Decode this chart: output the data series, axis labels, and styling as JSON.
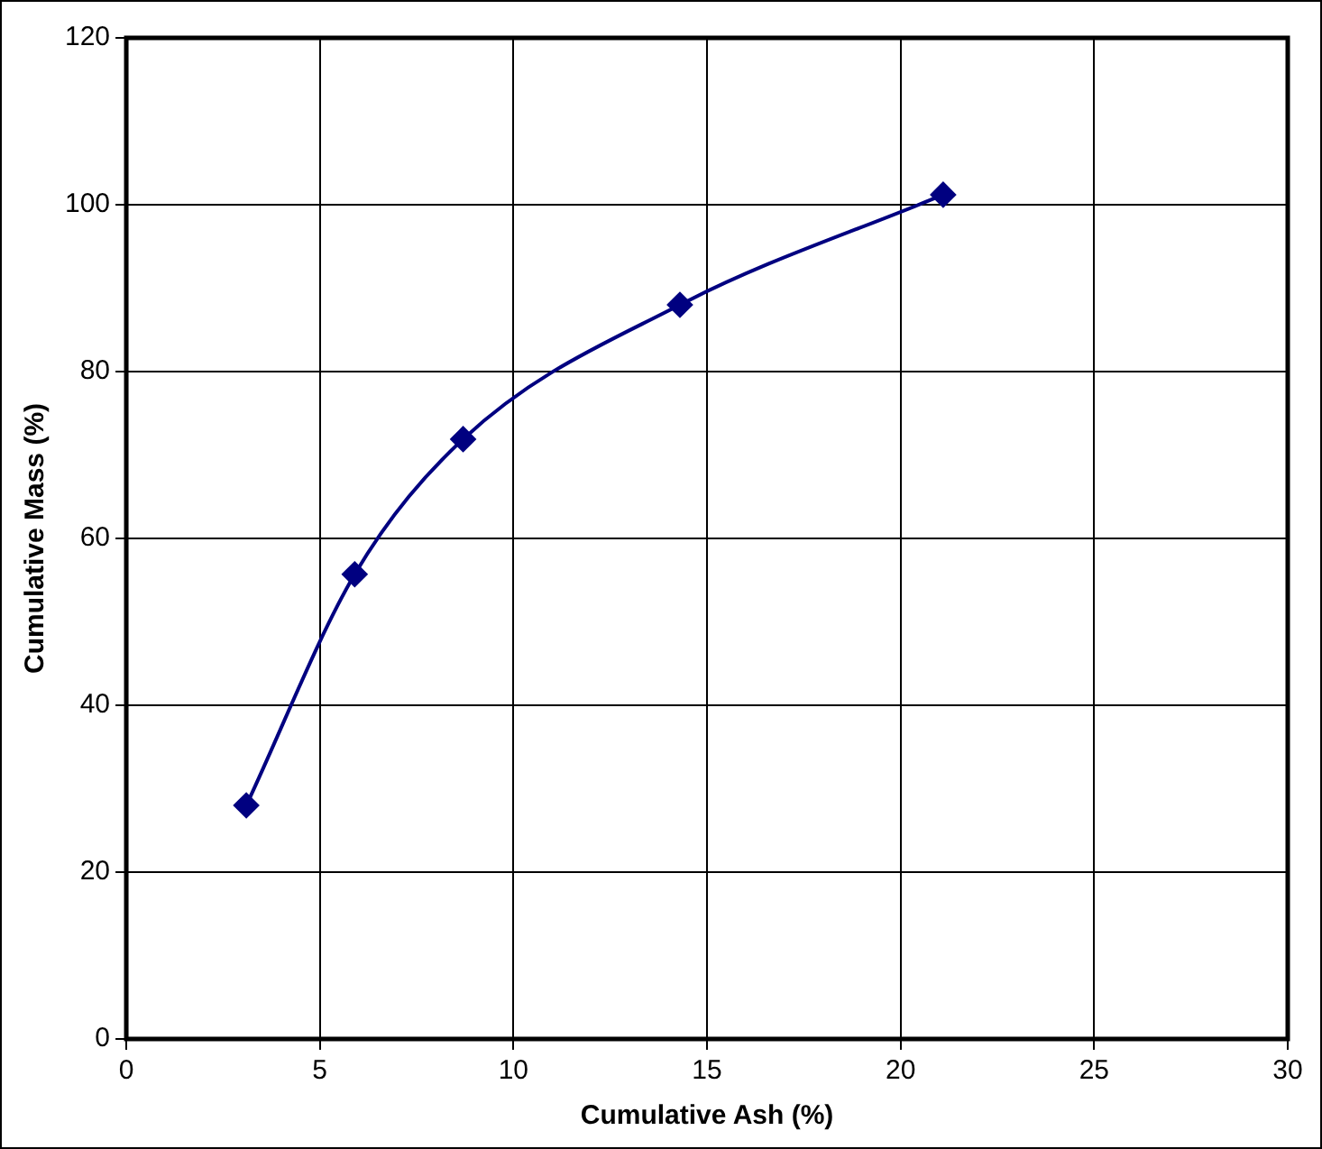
{
  "chart_data": {
    "type": "line",
    "xlabel": "Cumulative Ash (%)",
    "ylabel": "Cumulative Mass (%)",
    "x": [
      3.1,
      5.9,
      8.7,
      14.3,
      21.1
    ],
    "series": [
      {
        "color": "#000080",
        "values": [
          28.0,
          55.7,
          71.9,
          88.0,
          101.2
        ]
      }
    ],
    "xlim": [
      0,
      30
    ],
    "xticks": [
      0,
      5,
      10,
      15,
      20,
      25,
      30
    ],
    "ylim": [
      0,
      120
    ],
    "yticks": [
      0,
      20,
      40,
      60,
      80,
      100,
      120
    ],
    "grid": true,
    "marker": "diamond",
    "line_style": "solid"
  }
}
